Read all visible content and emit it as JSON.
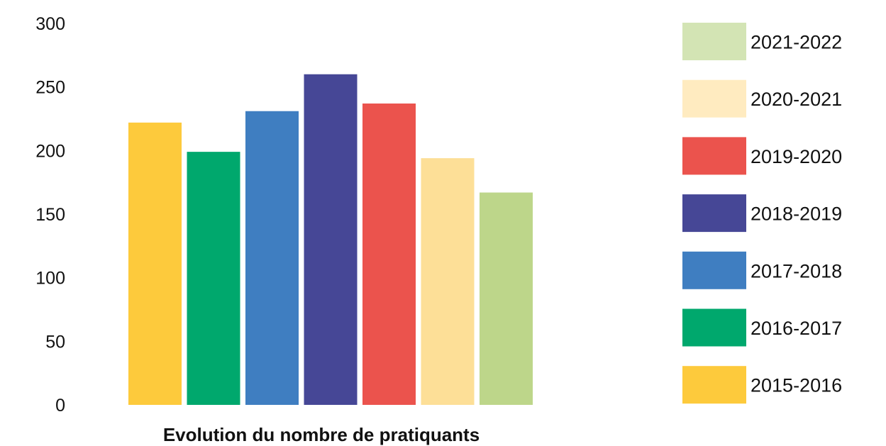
{
  "chart_data": {
    "type": "bar",
    "title": "",
    "xlabel": "Evolution du nombre de pratiquants",
    "ylabel": "",
    "ylim": [
      0,
      300
    ],
    "yticks": [
      0,
      50,
      100,
      150,
      200,
      250,
      300
    ],
    "grid": false,
    "legend_position": "right",
    "categories": [
      "2015-2016",
      "2016-2017",
      "2017-2018",
      "2018-2019",
      "2019-2020",
      "2020-2021",
      "2021-2022"
    ],
    "values": [
      222,
      199,
      231,
      260,
      237,
      194,
      167
    ],
    "colors": [
      "#FDCA3C",
      "#00A86D",
      "#3F7EC1",
      "#464796",
      "#EB534D",
      "#FDDF97",
      "#BDD68A"
    ],
    "legend": [
      {
        "label": "2021-2022",
        "color": "#D3E4B4"
      },
      {
        "label": "2020-2021",
        "color": "#FFEBC0"
      },
      {
        "label": "2019-2020",
        "color": "#EB534D"
      },
      {
        "label": "2018-2019",
        "color": "#464796"
      },
      {
        "label": "2017-2018",
        "color": "#3F7EC1"
      },
      {
        "label": "2016-2017",
        "color": "#00A86D"
      },
      {
        "label": "2015-2016",
        "color": "#FDCA3C"
      }
    ]
  }
}
